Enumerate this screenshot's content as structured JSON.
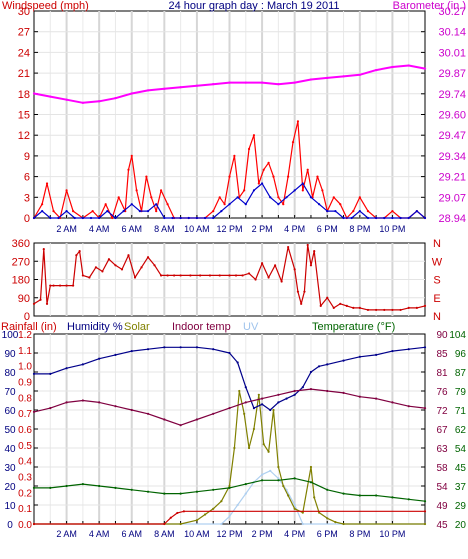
{
  "chart_data": [
    {
      "type": "line",
      "title": "24 hour graph day : March 19 2011",
      "left_axis_label": "Windspeed (mph)",
      "right_axis_label": "Barometer (in.)",
      "left_ticks": [
        "30",
        "27",
        "24",
        "21",
        "18",
        "15",
        "12",
        "9",
        "6",
        "3",
        "0"
      ],
      "right_ticks": [
        "30.27",
        "30.14",
        "30.01",
        "29.87",
        "29.74",
        "29.60",
        "29.47",
        "29.34",
        "29.21",
        "29.07",
        "28.94"
      ],
      "ylim_left": [
        0,
        30
      ],
      "ylim_right": [
        28.94,
        30.27
      ],
      "x_ticks": [
        "2 AM",
        "4 AM",
        "6 AM",
        "8 AM",
        "10 AM",
        "12 PM",
        "2 PM",
        "4 PM",
        "6 PM",
        "8 PM",
        "10 PM"
      ],
      "xlim_hours": [
        0,
        24
      ],
      "series": [
        {
          "color": "#ff00ff",
          "axis": "right",
          "x": [
            0,
            1,
            2,
            3,
            4,
            5,
            6,
            7,
            8,
            9,
            10,
            11,
            12,
            13,
            14,
            15,
            16,
            17,
            18,
            19,
            20,
            21,
            22,
            23,
            24
          ],
          "values": [
            29.74,
            29.72,
            29.7,
            29.68,
            29.69,
            29.71,
            29.74,
            29.76,
            29.77,
            29.78,
            29.79,
            29.8,
            29.81,
            29.81,
            29.81,
            29.8,
            29.81,
            29.83,
            29.84,
            29.85,
            29.86,
            29.89,
            29.91,
            29.92,
            29.9
          ]
        },
        {
          "color": "#ff0000",
          "axis": "left",
          "x": [
            0,
            0.5,
            0.8,
            1.2,
            1.6,
            2.0,
            2.4,
            3.0,
            3.6,
            4.0,
            4.4,
            4.8,
            5.2,
            5.6,
            5.8,
            6.0,
            6.3,
            6.6,
            6.9,
            7.2,
            7.5,
            7.8,
            8.2,
            8.6,
            9.0,
            9.5,
            10.0,
            10.5,
            11.0,
            11.4,
            11.7,
            12.0,
            12.3,
            12.6,
            12.9,
            13.2,
            13.5,
            13.8,
            14.1,
            14.4,
            14.7,
            15.0,
            15.3,
            15.6,
            15.9,
            16.2,
            16.5,
            16.8,
            17.1,
            17.4,
            17.7,
            18.0,
            18.4,
            18.8,
            19.2,
            19.6,
            20.0,
            20.5,
            21.0,
            21.5,
            22.0,
            22.5,
            23.0,
            23.5,
            24.0
          ],
          "values": [
            0,
            2,
            5,
            1,
            0,
            4,
            1,
            0,
            1,
            0,
            2,
            0,
            3,
            1,
            7,
            9,
            4,
            1,
            6,
            3,
            1,
            4,
            2,
            0,
            0,
            0,
            0,
            0,
            1,
            3,
            2,
            6,
            9,
            3,
            4,
            10,
            12,
            5,
            7,
            8,
            6,
            3,
            2,
            6,
            11,
            14,
            4,
            7,
            3,
            6,
            4,
            1,
            3,
            2,
            0,
            1,
            3,
            1,
            0,
            0,
            1,
            0,
            0,
            1,
            0
          ]
        },
        {
          "color": "#0000cc",
          "axis": "left",
          "x": [
            0,
            0.5,
            1.0,
            1.5,
            2.0,
            2.5,
            3.0,
            3.5,
            4.0,
            4.5,
            5.0,
            5.5,
            6.0,
            6.5,
            7.0,
            7.5,
            8.0,
            8.5,
            9.0,
            9.5,
            10.0,
            10.5,
            11.0,
            11.5,
            12.0,
            12.5,
            13.0,
            13.5,
            14.0,
            14.5,
            15.0,
            15.5,
            16.0,
            16.5,
            17.0,
            17.5,
            18.0,
            18.5,
            19.0,
            19.5,
            20.0,
            20.5,
            21.0,
            21.5,
            22.0,
            22.5,
            23.0,
            23.5,
            24.0
          ],
          "values": [
            0,
            1,
            0,
            0,
            1,
            0,
            0,
            0,
            0,
            1,
            0,
            1,
            2,
            1,
            1,
            2,
            0,
            0,
            0,
            0,
            0,
            0,
            0,
            1,
            2,
            3,
            2,
            4,
            5,
            3,
            2,
            3,
            4,
            5,
            3,
            2,
            1,
            1,
            0,
            0,
            1,
            0,
            0,
            0,
            0,
            0,
            0,
            1,
            0
          ]
        }
      ]
    },
    {
      "type": "line",
      "left_ticks": [
        "360",
        "270",
        "180",
        "90",
        "0"
      ],
      "right_ticks": [
        "N",
        "W",
        "S",
        "E",
        "N"
      ],
      "ylim": [
        0,
        360
      ],
      "series": [
        {
          "color": "#cc0000",
          "x": [
            0,
            0.4,
            0.6,
            0.8,
            1.0,
            1.2,
            1.6,
            2.0,
            2.4,
            2.6,
            2.8,
            3.0,
            3.4,
            3.8,
            4.2,
            4.6,
            5.0,
            5.4,
            5.8,
            6.2,
            6.6,
            7.0,
            7.4,
            7.8,
            8.2,
            8.6,
            9.0,
            9.6,
            10.2,
            10.8,
            11.4,
            12.0,
            12.4,
            12.8,
            13.2,
            13.6,
            14.0,
            14.4,
            14.8,
            15.2,
            15.6,
            16.0,
            16.2,
            16.4,
            16.6,
            16.8,
            17.0,
            17.2,
            17.6,
            18.0,
            18.4,
            18.8,
            19.2,
            19.6,
            20.0,
            20.5,
            21.0,
            21.5,
            22.0,
            22.5,
            23.0,
            23.5,
            24.0
          ],
          "values": [
            60,
            80,
            330,
            60,
            150,
            150,
            150,
            150,
            150,
            300,
            320,
            200,
            190,
            240,
            220,
            280,
            250,
            230,
            300,
            190,
            240,
            290,
            250,
            200,
            200,
            200,
            200,
            200,
            200,
            200,
            200,
            200,
            200,
            200,
            210,
            180,
            260,
            190,
            250,
            170,
            340,
            230,
            120,
            60,
            120,
            350,
            250,
            320,
            50,
            90,
            40,
            60,
            50,
            40,
            40,
            30,
            30,
            30,
            30,
            30,
            40,
            40,
            50
          ]
        }
      ]
    },
    {
      "type": "line",
      "left_axis_label": "Rainfall (in)",
      "humidity_label": "Humidity %",
      "solar_label": "Solar",
      "indoor_label": "Indoor temp",
      "uv_label": "UV",
      "temp_label": "Temperature (°F)",
      "rain_ticks": [
        "1.2",
        "1.1",
        "1.0",
        "0.9",
        "0.8",
        "0.7",
        "0.6",
        "0.5",
        "0.4",
        "0.3",
        "0.2",
        "0.1",
        "0.0"
      ],
      "humidity_ticks": [
        "100",
        "90",
        "80",
        "70",
        "60",
        "50",
        "40",
        "30",
        "20",
        "10",
        "0"
      ],
      "solar_ticks": [
        "90",
        "85",
        "81",
        "76",
        "72",
        "67",
        "63",
        "58",
        "54",
        "49",
        "45"
      ],
      "temp_ticks": [
        "104",
        "96",
        "87",
        "79",
        "71",
        "62",
        "54",
        "45",
        "37",
        "29",
        "20"
      ],
      "x_ticks": [
        "2 AM",
        "4 AM",
        "6 AM",
        "8 AM",
        "10 AM",
        "12 PM",
        "2 PM",
        "4 PM",
        "6 PM",
        "8 PM",
        "10 PM"
      ],
      "series": [
        {
          "color": "#00008b",
          "axis": "humidity",
          "x": [
            0,
            1,
            2,
            3,
            4,
            5,
            6,
            7,
            8,
            9,
            10,
            11,
            12,
            12.5,
            13,
            13.5,
            14,
            14.5,
            15,
            15.5,
            16,
            16.5,
            17,
            17.5,
            18,
            19,
            20,
            21,
            22,
            23,
            24
          ],
          "values": [
            79,
            79,
            82,
            84,
            87,
            89,
            91,
            92,
            93,
            93,
            93,
            92,
            90,
            85,
            72,
            61,
            63,
            60,
            64,
            66,
            68,
            72,
            80,
            83,
            84,
            86,
            88,
            89,
            91,
            92,
            93
          ]
        },
        {
          "color": "#800040",
          "axis": "humidity",
          "x": [
            0,
            1,
            2,
            3,
            4,
            5,
            6,
            7,
            8,
            9,
            10,
            11,
            12,
            13,
            14,
            15,
            16,
            17,
            18,
            19,
            20,
            21,
            22,
            23,
            24
          ],
          "values": [
            59,
            61,
            64,
            65,
            64,
            62,
            60,
            58,
            55,
            52,
            55,
            58,
            61,
            64,
            66,
            68,
            70,
            71,
            70,
            69,
            67,
            66,
            64,
            62,
            61
          ]
        },
        {
          "color": "#006400",
          "axis": "humidity",
          "x": [
            0,
            1,
            2,
            3,
            4,
            5,
            6,
            7,
            8,
            9,
            10,
            11,
            12,
            13,
            14,
            15,
            16,
            17,
            18,
            19,
            20,
            21,
            22,
            23,
            24
          ],
          "values": [
            19,
            19,
            20,
            21,
            20,
            19,
            18,
            17,
            16,
            16,
            17,
            18,
            19,
            21,
            23,
            23,
            24,
            22,
            18,
            16,
            15,
            15,
            14,
            13,
            12
          ]
        },
        {
          "color": "#808000",
          "axis": "humidity",
          "x": [
            0,
            9,
            10,
            10.5,
            11,
            11.5,
            12,
            12.3,
            12.6,
            12.9,
            13.2,
            13.5,
            13.8,
            14.1,
            14.4,
            14.7,
            15,
            15.3,
            15.6,
            16,
            16.5,
            17,
            17.2,
            17.5,
            18,
            18.5,
            19,
            24
          ],
          "values": [
            0,
            0,
            2,
            5,
            8,
            12,
            20,
            40,
            70,
            58,
            40,
            50,
            68,
            42,
            38,
            60,
            30,
            20,
            15,
            8,
            6,
            30,
            14,
            6,
            3,
            1,
            0,
            0
          ]
        },
        {
          "color": "#b0d0f0",
          "axis": "humidity",
          "x": [
            0,
            11.5,
            12,
            12.5,
            13,
            13.5,
            14,
            14.5,
            15,
            15.5,
            16,
            16.5,
            24
          ],
          "values": [
            0,
            0,
            4,
            10,
            16,
            22,
            26,
            28,
            24,
            18,
            10,
            0,
            0
          ]
        },
        {
          "color": "#cc0000",
          "axis": "rain",
          "x": [
            0,
            8.0,
            8.4,
            8.8,
            9.2,
            24
          ],
          "values": [
            0,
            0,
            0.04,
            0.07,
            0.08,
            0.08
          ]
        }
      ]
    }
  ]
}
